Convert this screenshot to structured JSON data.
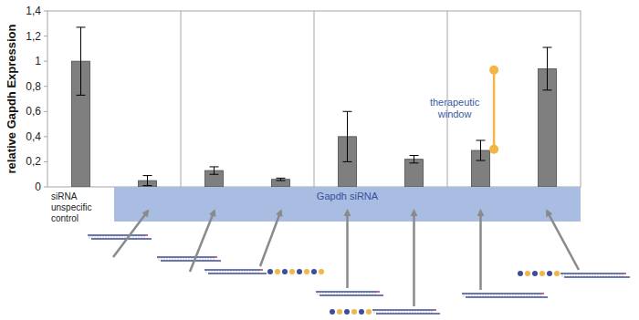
{
  "chart_data": {
    "type": "bar",
    "y_label": "relative Gapdh Expression",
    "categories": [
      "siRNA unspecific control",
      null,
      null,
      null,
      null,
      null,
      null,
      null
    ],
    "values": [
      1.0,
      0.05,
      0.13,
      0.06,
      0.4,
      0.22,
      0.29,
      0.94
    ],
    "errors": [
      0.27,
      0.04,
      0.03,
      0.01,
      0.2,
      0.03,
      0.08,
      0.17
    ],
    "color": "#7f7f7f",
    "ylim": [
      0,
      1.4
    ],
    "yticks": [
      0,
      {
        "value": 0.2,
        "label": "0,2"
      },
      {
        "value": 0.4,
        "label": "0,4"
      },
      {
        "value": 0.6,
        "label": "0,6"
      },
      {
        "value": 0.8,
        "label": "0,8"
      },
      1,
      {
        "value": 1.2,
        "label": "1,2"
      },
      {
        "value": 1.4,
        "label": "1,4"
      }
    ],
    "grid": false,
    "group_label": "Gapdh siRNA",
    "annotation": "therapeutic window",
    "therapeutic_window": [
      0.3,
      0.93
    ]
  }
}
